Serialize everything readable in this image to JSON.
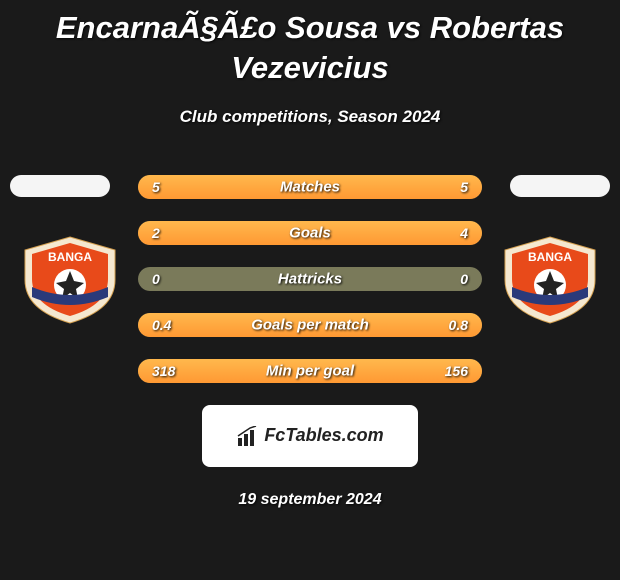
{
  "title": "EncarnaÃ§Ã£o Sousa vs Robertas Vezevicius",
  "subtitle": "Club competitions, Season 2024",
  "date": "19 september 2024",
  "brand": "FcTables.com",
  "colors": {
    "background": "#1a1a1a",
    "bar_bg": "#7a7a5a",
    "bar_fill_top": "#ffb84d",
    "bar_fill_bottom": "#ff9933",
    "text": "#ffffff",
    "badge_bg": "#ffffff",
    "club_outer": "#f5e8d0",
    "club_mid": "#e84a1a",
    "club_ball": "#ffffff",
    "club_band": "#2a3a7a"
  },
  "clubs": {
    "left": {
      "name": "BANGA"
    },
    "right": {
      "name": "BANGA"
    }
  },
  "stats": [
    {
      "label": "Matches",
      "left_val": "5",
      "right_val": "5",
      "left_pct": 50,
      "right_pct": 50
    },
    {
      "label": "Goals",
      "left_val": "2",
      "right_val": "4",
      "left_pct": 33,
      "right_pct": 67
    },
    {
      "label": "Hattricks",
      "left_val": "0",
      "right_val": "0",
      "left_pct": 0,
      "right_pct": 0
    },
    {
      "label": "Goals per match",
      "left_val": "0.4",
      "right_val": "0.8",
      "left_pct": 33,
      "right_pct": 67
    },
    {
      "label": "Min per goal",
      "left_val": "318",
      "right_val": "156",
      "left_pct": 67,
      "right_pct": 33
    }
  ]
}
